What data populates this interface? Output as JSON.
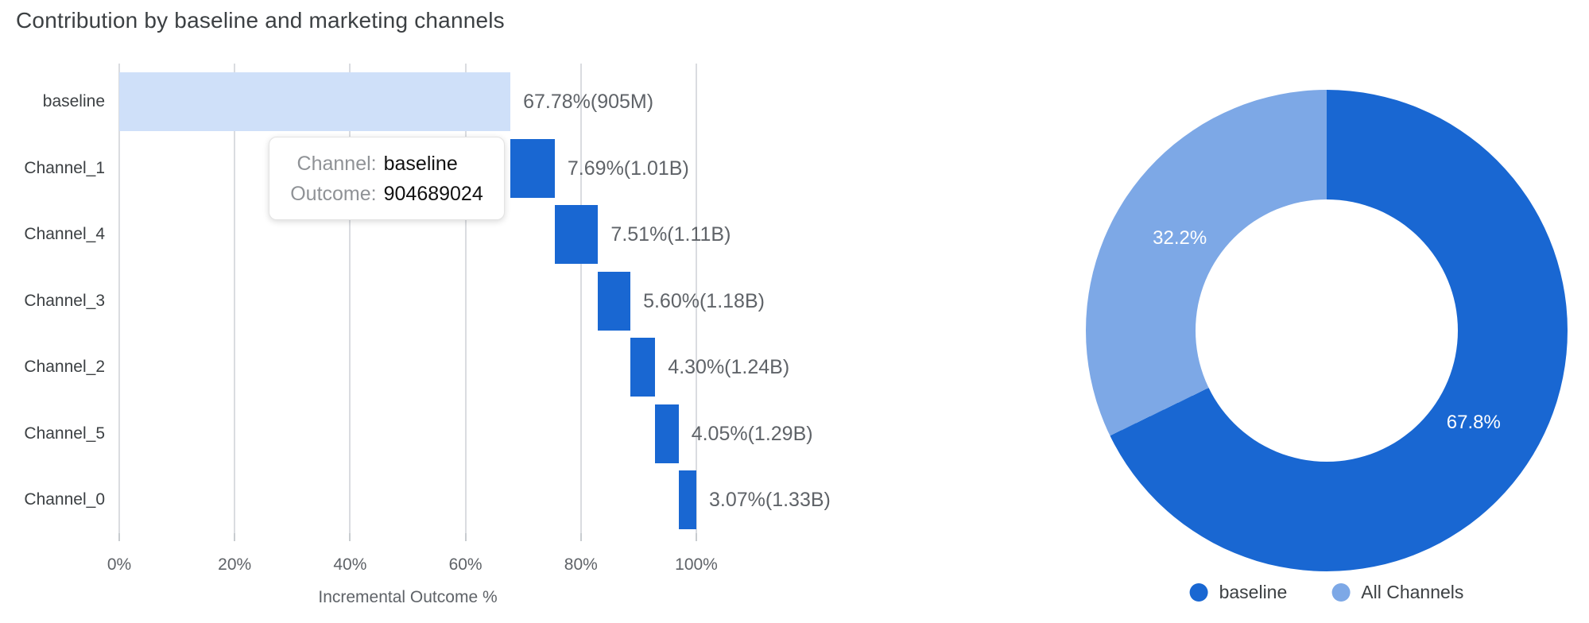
{
  "title": "Contribution by baseline and marketing channels",
  "colors": {
    "channel_blue": "#1967D2",
    "all_channels_light_blue": "#7DA8E6",
    "baseline_bar_light": "#CFE0F9",
    "gridline": "#DADCE0"
  },
  "tooltip": {
    "channel_label": "Channel:",
    "channel_value": "baseline",
    "outcome_label": "Outcome:",
    "outcome_value": "904689024"
  },
  "chart_data": [
    {
      "type": "bar",
      "subtype": "waterfall",
      "orientation": "horizontal",
      "title": "Contribution by baseline and marketing channels",
      "xlabel": "Incremental Outcome %",
      "xlim": [
        0,
        100
      ],
      "grid": true,
      "x_ticks": [
        {
          "pct": 0,
          "label": "0%"
        },
        {
          "pct": 20,
          "label": "20%"
        },
        {
          "pct": 40,
          "label": "40%"
        },
        {
          "pct": 60,
          "label": "60%"
        },
        {
          "pct": 80,
          "label": "80%"
        },
        {
          "pct": 100,
          "label": "100%"
        }
      ],
      "categories": [
        "baseline",
        "Channel_1",
        "Channel_4",
        "Channel_3",
        "Channel_2",
        "Channel_5",
        "Channel_0"
      ],
      "values_pct": [
        67.78,
        7.69,
        7.51,
        5.6,
        4.3,
        4.05,
        3.07
      ],
      "bar_labels": [
        "67.78%(905M)",
        "7.69%(1.01B)",
        "7.51%(1.11B)",
        "5.60%(1.18B)",
        "4.30%(1.24B)",
        "4.05%(1.29B)",
        "3.07%(1.33B)"
      ]
    },
    {
      "type": "pie",
      "donut": true,
      "legend_position": "bottom",
      "slices": [
        {
          "label": "baseline",
          "value": 67.8,
          "display": "67.8%",
          "color": "#1967D2"
        },
        {
          "label": "All Channels",
          "value": 32.2,
          "display": "32.2%",
          "color": "#7DA8E6"
        }
      ]
    }
  ]
}
